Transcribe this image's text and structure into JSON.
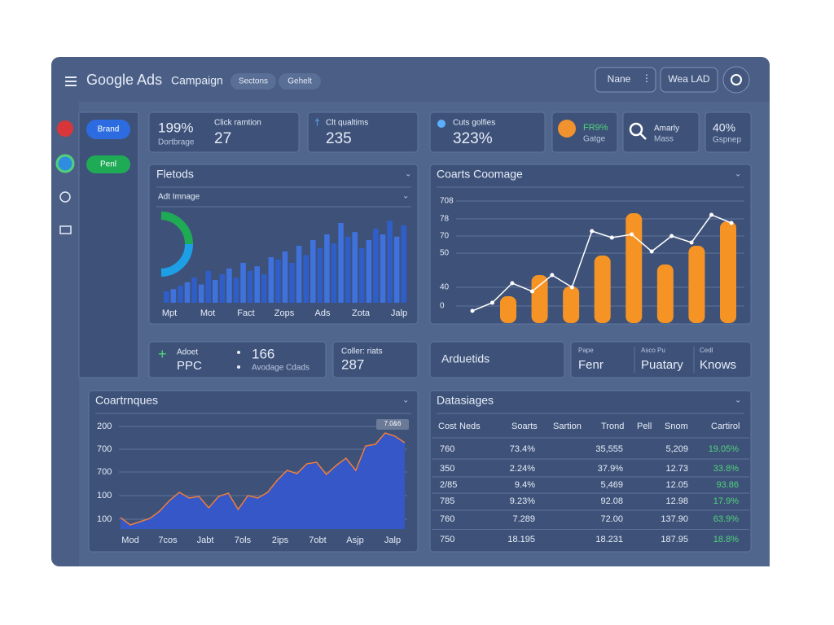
{
  "header": {
    "title": "Google Ads",
    "subtitle": "Campaign",
    "tabs": [
      "Sectons",
      "Gehelt"
    ],
    "buttons": [
      "Nane",
      "Wea LAD"
    ]
  },
  "sidebar": {
    "pills": [
      "Brand",
      "Penl"
    ]
  },
  "stat_cards": [
    {
      "value": "199%",
      "label": "Dortbrage",
      "title": "Click ramtion",
      "count": "27"
    },
    {
      "title": "Clt qualtims",
      "count": "235"
    },
    {
      "title": "Cuts golfies",
      "count": "323%"
    },
    {
      "value": "FR9%",
      "label": "Gatge"
    },
    {
      "title": "Amarly",
      "label": "Mass"
    },
    {
      "value": "40%",
      "label": "Gspnep"
    }
  ],
  "fletods": {
    "title": "Fletods",
    "subtitle": "Adt Imnage",
    "categories": [
      "Mpt",
      "Mot",
      "Fact",
      "Zops",
      "Ads",
      "Zota",
      "Jalp"
    ],
    "values": [
      10,
      12,
      15,
      18,
      22,
      16,
      28,
      20,
      25,
      30,
      22,
      35,
      28,
      32,
      25,
      40,
      38,
      45,
      35,
      50,
      42,
      55,
      48,
      60,
      52,
      70,
      58,
      62,
      48,
      55,
      65,
      60,
      72,
      58,
      68
    ]
  },
  "coarts": {
    "title": "Coarts Coomage",
    "y_labels": [
      "708",
      "78",
      "70",
      "50",
      "40",
      "0"
    ],
    "bars": [
      33,
      59,
      45,
      83,
      135,
      72,
      95,
      125
    ],
    "line": [
      15,
      25,
      49,
      39,
      59,
      44,
      113,
      105,
      109,
      88,
      107,
      99,
      133,
      123
    ]
  },
  "summary_cards": [
    {
      "title": "Adoet",
      "name": "PPC",
      "count": "166",
      "label": "Avodage Cdads"
    },
    {
      "title": "Coller: riats",
      "count": "287"
    },
    {
      "title": "Arduetids"
    },
    {
      "columns": [
        {
          "label": "Pape",
          "value": "Fenr"
        },
        {
          "label": "Asco Pu",
          "value": "Puatary"
        },
        {
          "label": "Cedl",
          "value": "Knows"
        }
      ]
    }
  ],
  "area": {
    "title": "Coartrnques",
    "y_labels": [
      "200",
      "700",
      "700",
      "100",
      "100"
    ],
    "categories": [
      "Mod",
      "7cos",
      "Jabt",
      "7ols",
      "2ips",
      "7obt",
      "Asjp",
      "Jalp"
    ],
    "values": [
      14,
      5,
      9,
      13,
      22,
      35,
      45,
      38,
      40,
      26,
      40,
      44,
      24,
      41,
      38,
      45,
      60,
      72,
      68,
      80,
      82,
      67,
      78,
      87,
      72,
      102,
      104,
      118,
      114,
      106
    ],
    "tooltip": "7.0&6"
  },
  "table": {
    "title": "Datasiages",
    "columns": [
      "Cost",
      "Neds",
      "Soarts",
      "Sartion",
      "Trond",
      "Pell",
      "Snom",
      "Cartirol"
    ],
    "rows": [
      [
        "760",
        "73.4%",
        "35,555",
        "5,209",
        "19.05%"
      ],
      [
        "350",
        "2.24%",
        "37.9%",
        "12.73",
        "33.8%"
      ],
      [
        "2/85",
        "9.4%",
        "5,469",
        "12.05",
        "93.86"
      ],
      [
        "785",
        "9.23%",
        "92.08",
        "12.98",
        "17.9%"
      ],
      [
        "760",
        "7.289",
        "72.00",
        "137.90",
        "63.9%"
      ],
      [
        "750",
        "18.195",
        "18.231",
        "187.95",
        "18.8%"
      ]
    ]
  }
}
